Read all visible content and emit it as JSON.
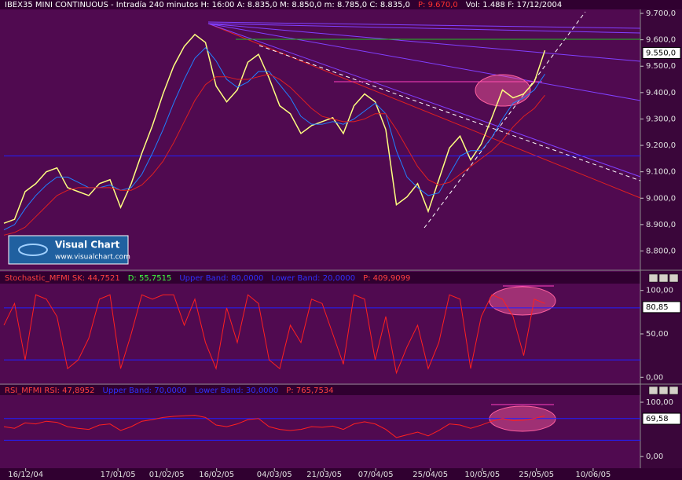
{
  "chart_data": [
    {
      "type": "line",
      "title": [
        {
          "text": "IBEX35 MINI CONTINUOUS - Intradía 240 minutos  H: 16:00  A: 8.835,0  M: 8.850,0  m: 8.785,0  C: 8.835,0",
          "color": "#ffffff"
        },
        {
          "text": "P: 9.670,0",
          "color": "#ff3030"
        },
        {
          "text": "Vol: 1.488  F: 17/12/2004",
          "color": "#ffffff"
        }
      ],
      "logo": {
        "name": "Visual Chart",
        "url": "www.visualchart.com"
      },
      "xlim": [
        0,
        120
      ],
      "ylim": [
        8730,
        9715
      ],
      "yticks": [
        {
          "value": 9700,
          "label": "9.700,0"
        },
        {
          "value": 9600,
          "label": "9.600,0"
        },
        {
          "value": 9500,
          "label": "9.500,0"
        },
        {
          "value": 9400,
          "label": "9.400,0"
        },
        {
          "value": 9300,
          "label": "9.300,0"
        },
        {
          "value": 9200,
          "label": "9.200,0"
        },
        {
          "value": 9100,
          "label": "9.100,0"
        },
        {
          "value": 9000,
          "label": "9.000,0"
        },
        {
          "value": 8900,
          "label": "8.900,0"
        },
        {
          "value": 8800,
          "label": "8.800,0"
        }
      ],
      "last_label": {
        "value": 9550,
        "label": "9.550,0"
      },
      "hlines": [
        {
          "value": 9160,
          "color": "#2020ff"
        }
      ],
      "series": [
        {
          "color": "#ffff80",
          "x": [
            0,
            2,
            4,
            6,
            8,
            10,
            12,
            14,
            16,
            18,
            20,
            22,
            24,
            26,
            28,
            30,
            32,
            34,
            36,
            38,
            40,
            42,
            44,
            46,
            48,
            50,
            52,
            54,
            56,
            58,
            60,
            62,
            64,
            66,
            68,
            70,
            72,
            74,
            76,
            78,
            80,
            82,
            84,
            86,
            88,
            90,
            92,
            94,
            96,
            98,
            100,
            102
          ],
          "values": [
            8905,
            8920,
            9025,
            9055,
            9100,
            9115,
            9040,
            9025,
            9010,
            9055,
            9070,
            8965,
            9055,
            9170,
            9275,
            9395,
            9500,
            9575,
            9620,
            9590,
            9425,
            9365,
            9410,
            9515,
            9545,
            9455,
            9350,
            9320,
            9245,
            9275,
            9290,
            9305,
            9245,
            9350,
            9395,
            9365,
            9260,
            8975,
            9005,
            9055,
            8950,
            9070,
            9190,
            9235,
            9145,
            9205,
            9305,
            9410,
            9380,
            9395,
            9440,
            9560
          ]
        },
        {
          "color": "#2080ff",
          "x": [
            0,
            2,
            4,
            6,
            8,
            10,
            12,
            14,
            16,
            18,
            20,
            22,
            24,
            26,
            28,
            30,
            32,
            34,
            36,
            38,
            40,
            42,
            44,
            46,
            48,
            50,
            52,
            54,
            56,
            58,
            60,
            62,
            64,
            66,
            68,
            70,
            72,
            74,
            76,
            78,
            80,
            82,
            84,
            86,
            88,
            90,
            92,
            94,
            96,
            98,
            100,
            102
          ],
          "values": [
            8880,
            8900,
            8960,
            9010,
            9050,
            9080,
            9080,
            9060,
            9040,
            9040,
            9050,
            9030,
            9040,
            9090,
            9170,
            9260,
            9360,
            9450,
            9530,
            9570,
            9520,
            9450,
            9420,
            9440,
            9480,
            9480,
            9430,
            9380,
            9310,
            9280,
            9280,
            9290,
            9280,
            9300,
            9330,
            9360,
            9320,
            9180,
            9080,
            9040,
            9010,
            9020,
            9090,
            9160,
            9180,
            9180,
            9230,
            9300,
            9360,
            9380,
            9410,
            9470
          ]
        },
        {
          "color": "#e02020",
          "x": [
            0,
            2,
            4,
            6,
            8,
            10,
            12,
            14,
            16,
            18,
            20,
            22,
            24,
            26,
            28,
            30,
            32,
            34,
            36,
            38,
            40,
            42,
            44,
            46,
            48,
            50,
            52,
            54,
            56,
            58,
            60,
            62,
            64,
            66,
            68,
            70,
            72,
            74,
            76,
            78,
            80,
            82,
            84,
            86,
            88,
            90,
            92,
            94,
            96,
            98,
            100,
            102
          ],
          "values": [
            8860,
            8870,
            8890,
            8930,
            8970,
            9010,
            9030,
            9040,
            9040,
            9040,
            9040,
            9030,
            9030,
            9050,
            9090,
            9140,
            9210,
            9290,
            9370,
            9430,
            9460,
            9460,
            9450,
            9450,
            9460,
            9470,
            9450,
            9420,
            9380,
            9340,
            9310,
            9300,
            9290,
            9290,
            9300,
            9320,
            9320,
            9260,
            9190,
            9120,
            9070,
            9050,
            9060,
            9090,
            9120,
            9150,
            9180,
            9220,
            9270,
            9310,
            9340,
            9390
          ]
        }
      ]
    },
    {
      "type": "line",
      "title": [
        {
          "text": "Stochastic_MFMI SK: 44,7521",
          "color": "#ff4040"
        },
        {
          "text": "D: 55,7515",
          "color": "#40ff40"
        },
        {
          "text": "Upper Band: 80,0000",
          "color": "#3030ff"
        },
        {
          "text": "Lower Band: 20,0000",
          "color": "#3030ff"
        },
        {
          "text": "P: 409,9099",
          "color": "#ff4040"
        }
      ],
      "xlim": [
        0,
        120
      ],
      "ylim": [
        -7,
        107
      ],
      "yticks": [
        {
          "value": 100,
          "label": "100,00"
        },
        {
          "value": 50,
          "label": "50,00"
        },
        {
          "value": 0,
          "label": "0,00"
        }
      ],
      "last_label": {
        "value": 80.85,
        "label": "80,85"
      },
      "hlines": [
        {
          "value": 80,
          "color": "#2020ff"
        },
        {
          "value": 20,
          "color": "#2020ff"
        }
      ],
      "series": [
        {
          "color": "#ff2020",
          "x": [
            0,
            2,
            4,
            6,
            8,
            10,
            12,
            14,
            16,
            18,
            20,
            22,
            24,
            26,
            28,
            30,
            32,
            34,
            36,
            38,
            40,
            42,
            44,
            46,
            48,
            50,
            52,
            54,
            56,
            58,
            60,
            62,
            64,
            66,
            68,
            70,
            72,
            74,
            76,
            78,
            80,
            82,
            84,
            86,
            88,
            90,
            92,
            94,
            96,
            98,
            100,
            102
          ],
          "values": [
            60,
            85,
            20,
            95,
            90,
            70,
            10,
            20,
            45,
            90,
            95,
            10,
            50,
            95,
            90,
            95,
            95,
            60,
            90,
            40,
            10,
            80,
            40,
            95,
            85,
            20,
            10,
            60,
            40,
            90,
            85,
            50,
            15,
            95,
            90,
            20,
            70,
            5,
            35,
            60,
            10,
            40,
            95,
            90,
            10,
            70,
            95,
            90,
            70,
            25,
            90,
            85
          ]
        }
      ]
    },
    {
      "type": "line",
      "title": [
        {
          "text": "RSI_MFMI RSI: 47,8952",
          "color": "#ff4040"
        },
        {
          "text": "Upper Band: 70,0000",
          "color": "#3030ff"
        },
        {
          "text": "Lower Band: 30,0000",
          "color": "#3030ff"
        },
        {
          "text": "P: 765,7534",
          "color": "#ff4040"
        }
      ],
      "xlim": [
        0,
        120
      ],
      "ylim": [
        -20,
        113
      ],
      "yticks": [
        {
          "value": 100,
          "label": "100,00"
        },
        {
          "value": 0,
          "label": "0,00"
        }
      ],
      "last_label": {
        "value": 69.58,
        "label": "69,58"
      },
      "hlines": [
        {
          "value": 70,
          "color": "#2020ff"
        },
        {
          "value": 30,
          "color": "#2020ff"
        }
      ],
      "xticks": [
        {
          "value": 4.1,
          "label": "16/12/04"
        },
        {
          "value": 21.5,
          "label": "17/01/05"
        },
        {
          "value": 30.7,
          "label": "01/02/05"
        },
        {
          "value": 40.1,
          "label": "16/02/05"
        },
        {
          "value": 51,
          "label": "04/03/05"
        },
        {
          "value": 60.4,
          "label": "21/03/05"
        },
        {
          "value": 70.1,
          "label": "07/04/05"
        },
        {
          "value": 80.4,
          "label": "25/04/05"
        },
        {
          "value": 90.2,
          "label": "10/05/05"
        },
        {
          "value": 100.4,
          "label": "25/05/05"
        },
        {
          "value": 111.1,
          "label": "10/06/05"
        }
      ],
      "series": [
        {
          "color": "#ff2020",
          "x": [
            0,
            2,
            4,
            6,
            8,
            10,
            12,
            14,
            16,
            18,
            20,
            22,
            24,
            26,
            28,
            30,
            32,
            34,
            36,
            38,
            40,
            42,
            44,
            46,
            48,
            50,
            52,
            54,
            56,
            58,
            60,
            62,
            64,
            66,
            68,
            70,
            72,
            74,
            76,
            78,
            80,
            82,
            84,
            86,
            88,
            90,
            92,
            94,
            96,
            98,
            100,
            102
          ],
          "values": [
            55,
            52,
            62,
            60,
            65,
            63,
            55,
            52,
            50,
            58,
            60,
            48,
            55,
            65,
            68,
            72,
            74,
            75,
            76,
            72,
            58,
            55,
            60,
            68,
            70,
            55,
            50,
            48,
            50,
            55,
            54,
            56,
            50,
            60,
            64,
            60,
            50,
            35,
            40,
            45,
            38,
            48,
            60,
            58,
            52,
            58,
            65,
            70,
            66,
            67,
            70,
            75
          ]
        }
      ]
    }
  ]
}
